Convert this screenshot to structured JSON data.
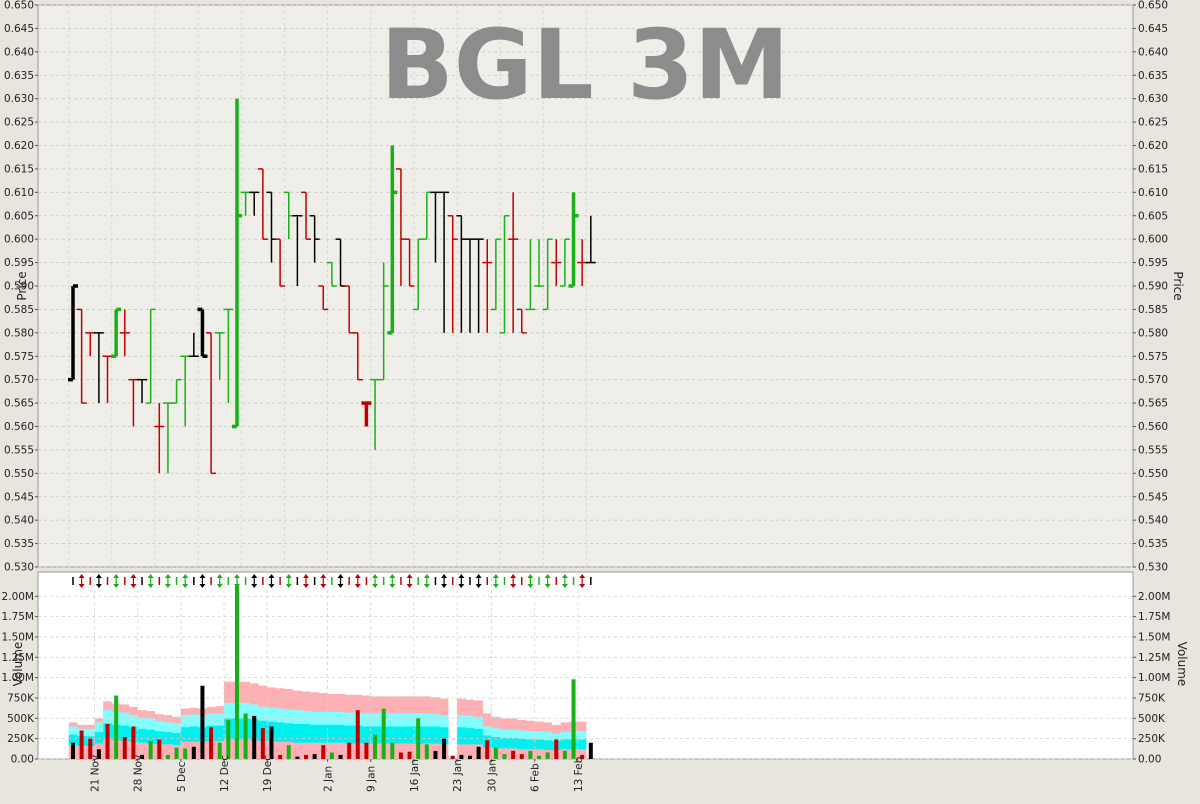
{
  "colors": {
    "background": "#e8e4de",
    "price_panel": "#f0eee9",
    "volume_panel": "#ffffff",
    "up": "#17b117",
    "down": "#c00000",
    "neutral": "#000000",
    "band_outer": "#ffb0b4",
    "band_mid": "#7fffff",
    "band_inner": "#00f0f0",
    "watermark": "#8c8c8c"
  },
  "chart_data": [
    {
      "type": "ohlc",
      "title": "BGL 3M",
      "ylabel": "Price",
      "ylim": [
        0.53,
        0.65
      ],
      "yticks": [
        "0.530",
        "0.535",
        "0.540",
        "0.545",
        "0.550",
        "0.555",
        "0.560",
        "0.565",
        "0.570",
        "0.575",
        "0.580",
        "0.585",
        "0.590",
        "0.595",
        "0.600",
        "0.605",
        "0.610",
        "0.615",
        "0.620",
        "0.625",
        "0.630",
        "0.635",
        "0.640",
        "0.645",
        "0.650"
      ],
      "grid": true,
      "bars": [
        {
          "o": 0.57,
          "h": 0.59,
          "l": 0.57,
          "c": 0.59,
          "d": "n"
        },
        {
          "o": 0.585,
          "h": 0.585,
          "l": 0.565,
          "c": 0.565,
          "d": "d"
        },
        {
          "o": 0.58,
          "h": 0.58,
          "l": 0.575,
          "c": 0.58,
          "d": "d"
        },
        {
          "o": 0.58,
          "h": 0.58,
          "l": 0.565,
          "c": 0.58,
          "d": "n"
        },
        {
          "o": 0.575,
          "h": 0.575,
          "l": 0.565,
          "c": 0.575,
          "d": "d"
        },
        {
          "o": 0.575,
          "h": 0.585,
          "l": 0.575,
          "c": 0.585,
          "d": "u"
        },
        {
          "o": 0.58,
          "h": 0.585,
          "l": 0.575,
          "c": 0.58,
          "d": "d"
        },
        {
          "o": 0.57,
          "h": 0.57,
          "l": 0.56,
          "c": 0.57,
          "d": "d"
        },
        {
          "o": 0.57,
          "h": 0.57,
          "l": 0.565,
          "c": 0.57,
          "d": "n"
        },
        {
          "o": 0.565,
          "h": 0.585,
          "l": 0.565,
          "c": 0.585,
          "d": "u"
        },
        {
          "o": 0.56,
          "h": 0.565,
          "l": 0.55,
          "c": 0.56,
          "d": "d"
        },
        {
          "o": 0.565,
          "h": 0.565,
          "l": 0.55,
          "c": 0.565,
          "d": "u"
        },
        {
          "o": 0.565,
          "h": 0.57,
          "l": 0.565,
          "c": 0.57,
          "d": "u"
        },
        {
          "o": 0.575,
          "h": 0.575,
          "l": 0.56,
          "c": 0.575,
          "d": "u"
        },
        {
          "o": 0.575,
          "h": 0.58,
          "l": 0.575,
          "c": 0.575,
          "d": "n"
        },
        {
          "o": 0.585,
          "h": 0.585,
          "l": 0.575,
          "c": 0.575,
          "d": "n"
        },
        {
          "o": 0.58,
          "h": 0.58,
          "l": 0.55,
          "c": 0.55,
          "d": "d"
        },
        {
          "o": 0.58,
          "h": 0.58,
          "l": 0.57,
          "c": 0.58,
          "d": "u"
        },
        {
          "o": 0.585,
          "h": 0.585,
          "l": 0.565,
          "c": 0.585,
          "d": "u"
        },
        {
          "o": 0.56,
          "h": 0.63,
          "l": 0.56,
          "c": 0.605,
          "d": "u"
        },
        {
          "o": 0.61,
          "h": 0.61,
          "l": 0.605,
          "c": 0.61,
          "d": "u"
        },
        {
          "o": 0.61,
          "h": 0.61,
          "l": 0.605,
          "c": 0.61,
          "d": "n"
        },
        {
          "o": 0.615,
          "h": 0.615,
          "l": 0.6,
          "c": 0.6,
          "d": "d"
        },
        {
          "o": 0.61,
          "h": 0.61,
          "l": 0.595,
          "c": 0.6,
          "d": "n"
        },
        {
          "o": 0.6,
          "h": 0.6,
          "l": 0.59,
          "c": 0.59,
          "d": "d"
        },
        {
          "o": 0.61,
          "h": 0.61,
          "l": 0.6,
          "c": 0.605,
          "d": "u"
        },
        {
          "o": 0.605,
          "h": 0.605,
          "l": 0.59,
          "c": 0.605,
          "d": "n"
        },
        {
          "o": 0.61,
          "h": 0.61,
          "l": 0.6,
          "c": 0.6,
          "d": "d"
        },
        {
          "o": 0.605,
          "h": 0.605,
          "l": 0.595,
          "c": 0.6,
          "d": "n"
        },
        {
          "o": 0.59,
          "h": 0.59,
          "l": 0.585,
          "c": 0.585,
          "d": "d"
        },
        {
          "o": 0.595,
          "h": 0.595,
          "l": 0.59,
          "c": 0.59,
          "d": "u"
        },
        {
          "o": 0.6,
          "h": 0.6,
          "l": 0.59,
          "c": 0.59,
          "d": "n"
        },
        {
          "o": 0.59,
          "h": 0.59,
          "l": 0.58,
          "c": 0.58,
          "d": "d"
        },
        {
          "o": 0.58,
          "h": 0.58,
          "l": 0.57,
          "c": 0.57,
          "d": "d"
        },
        {
          "o": 0.565,
          "h": 0.565,
          "l": 0.56,
          "c": 0.565,
          "d": "d"
        },
        {
          "o": 0.57,
          "h": 0.57,
          "l": 0.555,
          "c": 0.57,
          "d": "u"
        },
        {
          "o": 0.57,
          "h": 0.595,
          "l": 0.57,
          "c": 0.59,
          "d": "u"
        },
        {
          "o": 0.58,
          "h": 0.62,
          "l": 0.58,
          "c": 0.61,
          "d": "u"
        },
        {
          "o": 0.615,
          "h": 0.615,
          "l": 0.59,
          "c": 0.6,
          "d": "d"
        },
        {
          "o": 0.6,
          "h": 0.6,
          "l": 0.59,
          "c": 0.59,
          "d": "d"
        },
        {
          "o": 0.585,
          "h": 0.6,
          "l": 0.585,
          "c": 0.6,
          "d": "u"
        },
        {
          "o": 0.6,
          "h": 0.61,
          "l": 0.6,
          "c": 0.61,
          "d": "u"
        },
        {
          "o": 0.61,
          "h": 0.61,
          "l": 0.595,
          "c": 0.61,
          "d": "n"
        },
        {
          "o": 0.61,
          "h": 0.61,
          "l": 0.58,
          "c": 0.61,
          "d": "n"
        },
        {
          "o": 0.605,
          "h": 0.605,
          "l": 0.58,
          "c": 0.6,
          "d": "d"
        },
        {
          "o": 0.605,
          "h": 0.605,
          "l": 0.58,
          "c": 0.6,
          "d": "n"
        },
        {
          "o": 0.6,
          "h": 0.6,
          "l": 0.58,
          "c": 0.6,
          "d": "n"
        },
        {
          "o": 0.6,
          "h": 0.6,
          "l": 0.58,
          "c": 0.6,
          "d": "n"
        },
        {
          "o": 0.595,
          "h": 0.6,
          "l": 0.58,
          "c": 0.595,
          "d": "d"
        },
        {
          "o": 0.585,
          "h": 0.6,
          "l": 0.585,
          "c": 0.6,
          "d": "u"
        },
        {
          "o": 0.58,
          "h": 0.605,
          "l": 0.58,
          "c": 0.605,
          "d": "u"
        },
        {
          "o": 0.6,
          "h": 0.61,
          "l": 0.58,
          "c": 0.6,
          "d": "d"
        },
        {
          "o": 0.585,
          "h": 0.585,
          "l": 0.58,
          "c": 0.58,
          "d": "d"
        },
        {
          "o": 0.585,
          "h": 0.6,
          "l": 0.585,
          "c": 0.585,
          "d": "u"
        },
        {
          "o": 0.59,
          "h": 0.6,
          "l": 0.59,
          "c": 0.59,
          "d": "u"
        },
        {
          "o": 0.585,
          "h": 0.6,
          "l": 0.585,
          "c": 0.6,
          "d": "u"
        },
        {
          "o": 0.595,
          "h": 0.6,
          "l": 0.59,
          "c": 0.595,
          "d": "d"
        },
        {
          "o": 0.59,
          "h": 0.6,
          "l": 0.59,
          "c": 0.6,
          "d": "u"
        },
        {
          "o": 0.59,
          "h": 0.61,
          "l": 0.59,
          "c": 0.605,
          "d": "u"
        },
        {
          "o": 0.595,
          "h": 0.6,
          "l": 0.59,
          "c": 0.595,
          "d": "d"
        },
        {
          "o": 0.595,
          "h": 0.605,
          "l": 0.595,
          "c": 0.595,
          "d": "n"
        }
      ]
    },
    {
      "type": "bar",
      "ylabel": "Volume",
      "ylim": [
        0,
        2200000
      ],
      "yticks": [
        {
          "v": 0,
          "t": "0.00"
        },
        {
          "v": 250000,
          "t": "250K"
        },
        {
          "v": 500000,
          "t": "500K"
        },
        {
          "v": 750000,
          "t": "750K"
        },
        {
          "v": 1000000,
          "t": "1.00M"
        },
        {
          "v": 1250000,
          "t": "1.25M"
        },
        {
          "v": 1500000,
          "t": "1.50M"
        },
        {
          "v": 1750000,
          "t": "1.75M"
        },
        {
          "v": 2000000,
          "t": "2.00M"
        }
      ],
      "xlabels": [
        {
          "i": 2.5,
          "t": "21 Nov"
        },
        {
          "i": 7.5,
          "t": "28 Nov"
        },
        {
          "i": 12.5,
          "t": "5 Dec"
        },
        {
          "i": 17.5,
          "t": "12 Dec"
        },
        {
          "i": 22.5,
          "t": "19 Dec"
        },
        {
          "i": 29.5,
          "t": "2 Jan"
        },
        {
          "i": 34.5,
          "t": "9 Jan"
        },
        {
          "i": 39.5,
          "t": "16 Jan"
        },
        {
          "i": 44.5,
          "t": "23 Jan"
        },
        {
          "i": 48.5,
          "t": "30 Jan"
        },
        {
          "i": 53.5,
          "t": "6 Feb"
        },
        {
          "i": 58.5,
          "t": "13 Feb"
        }
      ],
      "volumes": [
        200000,
        350000,
        250000,
        120000,
        430000,
        780000,
        270000,
        400000,
        50000,
        220000,
        240000,
        50000,
        140000,
        130000,
        150000,
        900000,
        390000,
        200000,
        480000,
        2130000,
        560000,
        530000,
        380000,
        400000,
        50000,
        170000,
        30000,
        50000,
        60000,
        170000,
        80000,
        50000,
        200000,
        600000,
        200000,
        300000,
        620000,
        200000,
        80000,
        90000,
        500000,
        180000,
        100000,
        250000,
        40000,
        50000,
        40000,
        150000,
        230000,
        140000,
        60000,
        100000,
        60000,
        100000,
        40000,
        80000,
        240000,
        100000,
        980000,
        50000,
        200000
      ],
      "band_outer": [
        450000,
        420000,
        420000,
        500000,
        710000,
        680000,
        670000,
        640000,
        600000,
        590000,
        550000,
        540000,
        520000,
        620000,
        630000,
        620000,
        640000,
        650000,
        950000,
        950000,
        950000,
        930000,
        900000,
        880000,
        870000,
        860000,
        840000,
        830000,
        820000,
        810000,
        800000,
        800000,
        790000,
        790000,
        780000,
        770000,
        770000,
        770000,
        770000,
        770000,
        770000,
        770000,
        760000,
        740000,
        null,
        740000,
        730000,
        720000,
        560000,
        520000,
        500000,
        500000,
        480000,
        470000,
        460000,
        450000,
        420000,
        450000,
        460000,
        460000
      ],
      "band_mid": [
        400000,
        370000,
        370000,
        450000,
        600000,
        580000,
        570000,
        540000,
        510000,
        500000,
        470000,
        450000,
        440000,
        540000,
        550000,
        540000,
        560000,
        560000,
        690000,
        690000,
        690000,
        670000,
        640000,
        630000,
        620000,
        610000,
        600000,
        590000,
        580000,
        580000,
        580000,
        580000,
        570000,
        570000,
        560000,
        560000,
        560000,
        560000,
        560000,
        560000,
        560000,
        560000,
        550000,
        540000,
        null,
        540000,
        530000,
        520000,
        400000,
        380000,
        360000,
        360000,
        350000,
        340000,
        340000,
        330000,
        310000,
        330000,
        340000,
        340000
      ],
      "band_inner": [
        300000,
        280000,
        280000,
        330000,
        440000,
        420000,
        410000,
        390000,
        370000,
        360000,
        340000,
        330000,
        320000,
        390000,
        400000,
        390000,
        410000,
        410000,
        500000,
        500000,
        500000,
        490000,
        470000,
        460000,
        450000,
        440000,
        430000,
        430000,
        420000,
        420000,
        420000,
        420000,
        410000,
        410000,
        400000,
        400000,
        400000,
        400000,
        400000,
        400000,
        400000,
        400000,
        400000,
        390000,
        null,
        390000,
        380000,
        370000,
        290000,
        270000,
        260000,
        260000,
        250000,
        240000,
        240000,
        230000,
        220000,
        240000,
        240000,
        240000
      ],
      "band_low": [
        170000,
        160000,
        160000,
        190000,
        240000,
        230000,
        220000,
        210000,
        200000,
        190000,
        180000,
        180000,
        170000,
        210000,
        210000,
        210000,
        220000,
        220000,
        240000,
        240000,
        240000,
        230000,
        220000,
        220000,
        210000,
        210000,
        200000,
        200000,
        200000,
        200000,
        200000,
        200000,
        190000,
        190000,
        190000,
        190000,
        190000,
        190000,
        190000,
        190000,
        190000,
        190000,
        190000,
        180000,
        null,
        180000,
        180000,
        180000,
        140000,
        130000,
        130000,
        130000,
        120000,
        120000,
        120000,
        110000,
        110000,
        120000,
        120000,
        120000
      ]
    }
  ]
}
